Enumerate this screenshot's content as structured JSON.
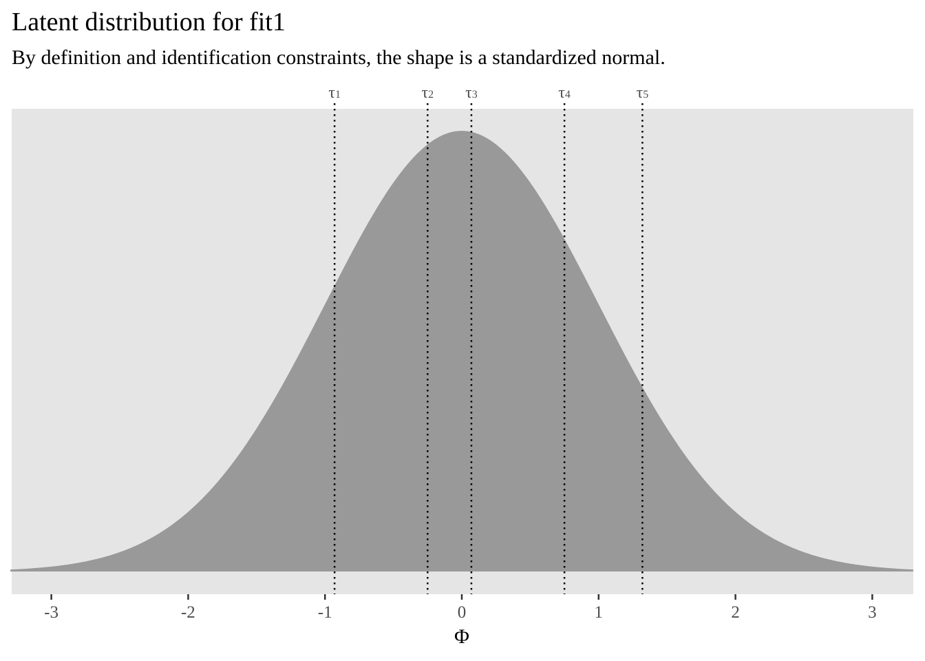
{
  "chart_data": {
    "type": "area",
    "title": "Latent distribution for fit1",
    "subtitle": "By definition and identification constraints, the shape is a standardized normal.",
    "xlabel": "Φ",
    "ylabel": "",
    "xlim": [
      -3.3,
      3.3
    ],
    "x_ticks": [
      -3,
      -2,
      -1,
      0,
      1,
      2,
      3
    ],
    "x_tick_labels": [
      "-3",
      "-2",
      "-1",
      "0",
      "1",
      "2",
      "3"
    ],
    "distribution": {
      "name": "standard normal",
      "mean": 0,
      "sd": 1
    },
    "thresholds": [
      {
        "symbol": "τ",
        "index": "1",
        "x": -0.93
      },
      {
        "symbol": "τ",
        "index": "2",
        "x": -0.25
      },
      {
        "symbol": "τ",
        "index": "3",
        "x": 0.07
      },
      {
        "symbol": "τ",
        "index": "4",
        "x": 0.75
      },
      {
        "symbol": "τ",
        "index": "5",
        "x": 1.32
      }
    ],
    "grid": false,
    "colors": {
      "panel": "#e5e5e5",
      "fill": "#999999",
      "threshold_line": "#000000",
      "tick": "#333333"
    }
  }
}
